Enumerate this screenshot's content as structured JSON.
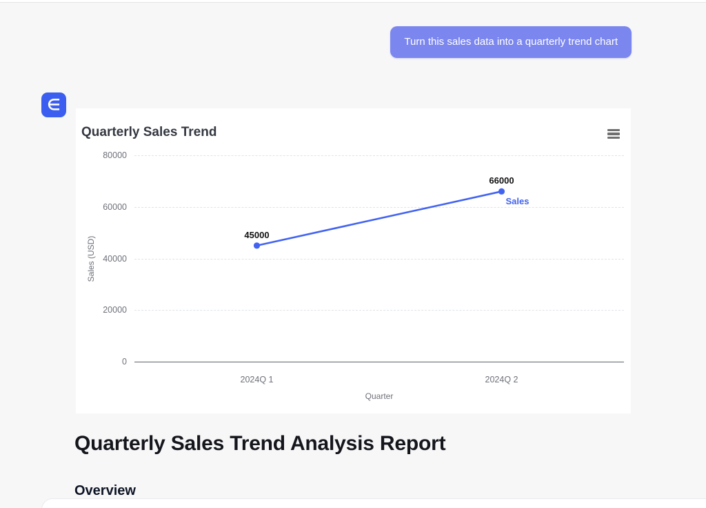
{
  "page": {
    "background_color": "#f7f7f8",
    "top_divider_color": "#e4e4e6"
  },
  "chat": {
    "user_message": "Turn this sales data into a quarterly trend chart",
    "bubble_color": "#7b86ee",
    "avatar_glyph": "∈",
    "avatar_color": "#3b5ef0"
  },
  "chart_data": {
    "type": "line",
    "title": "Quarterly Sales Trend",
    "categories": [
      "2024Q 1",
      "2024Q 2"
    ],
    "series": [
      {
        "name": "Sales",
        "values": [
          45000,
          66000
        ]
      }
    ],
    "xlabel": "Quarter",
    "ylabel": "Sales (USD)",
    "ylim": [
      0,
      80000
    ],
    "yticks": [
      0,
      20000,
      40000,
      60000,
      80000
    ],
    "grid": "horizontal dashed",
    "legend_position": "end-of-line label",
    "point_labels": [
      45000,
      66000
    ],
    "end_label": "Sales",
    "line_color": "#4263f0",
    "label_color": "#111111"
  },
  "report": {
    "title": "Quarterly Sales Trend Analysis Report",
    "section_heading": "Overview"
  }
}
